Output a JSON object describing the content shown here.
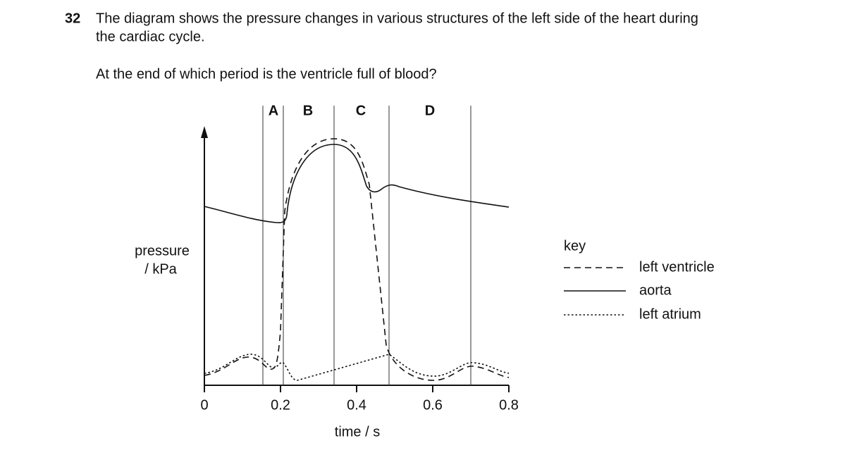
{
  "question": {
    "number": "32",
    "text_lines": [
      "The diagram shows the pressure changes in various structures of the left side of the heart during",
      "the cardiac cycle."
    ],
    "prompt": "At the end of which period is the ventricle full of blood?"
  },
  "figure": {
    "y_label_lines": [
      "pressure",
      "/ kPa"
    ],
    "x_label": "time / s",
    "x_ticks": [
      0,
      0.2,
      0.4,
      0.6,
      0.8
    ],
    "periods": [
      "A",
      "B",
      "C",
      "D"
    ],
    "key": {
      "title": "key",
      "entries": [
        "left ventricle",
        "aorta",
        "left atrium"
      ]
    }
  }
}
